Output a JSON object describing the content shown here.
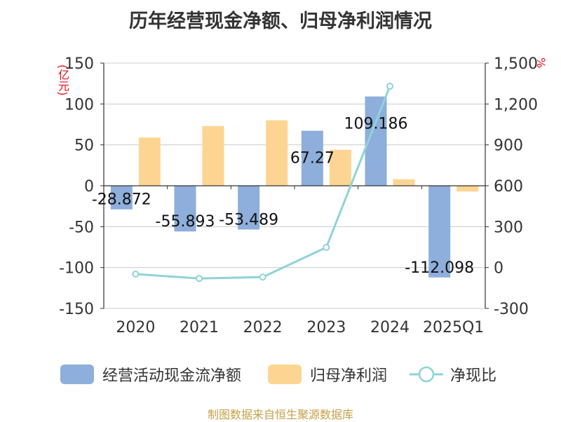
{
  "title": "历年经营现金净额、归母净利润情况",
  "left_unit": "(亿元)",
  "right_unit": "%",
  "source": "制图数据来自恒生聚源数据库",
  "colors": {
    "bar_cash": "#8eaedb",
    "bar_profit": "#fdd592",
    "line": "#8fd3d8",
    "axis_text": "#333333",
    "grid": "#cccccc",
    "unit": "#e8101b",
    "source": "#c6a04a"
  },
  "chart_data": {
    "type": "bar",
    "categories": [
      "2020",
      "2021",
      "2022",
      "2023",
      "2024",
      "2025Q1"
    ],
    "series": [
      {
        "name": "经营活动现金流净额",
        "type": "bar",
        "axis": "left",
        "values": [
          -28.872,
          -55.893,
          -53.489,
          67.27,
          109.186,
          -112.098
        ],
        "labels": [
          "-28.872",
          "-55.893",
          "-53.489",
          "67.27",
          "109.186",
          "-112.098"
        ]
      },
      {
        "name": "归母净利润",
        "type": "bar",
        "axis": "left",
        "values": [
          59,
          73,
          80,
          44,
          8,
          -7
        ]
      },
      {
        "name": "净现比",
        "type": "line",
        "axis": "right",
        "values": [
          -48,
          -80,
          -70,
          148,
          1330,
          null
        ]
      }
    ],
    "y_left": {
      "min": -150,
      "max": 150,
      "ticks": [
        "150",
        "100",
        "50",
        "0",
        "-50",
        "-100",
        "-150"
      ],
      "tick_values": [
        150,
        100,
        50,
        0,
        -50,
        -100,
        -150
      ]
    },
    "y_right": {
      "min": -300,
      "max": 1500,
      "ticks": [
        "1,500",
        "1,200",
        "900",
        "600",
        "300",
        "0",
        "-300"
      ],
      "tick_values": [
        1500,
        1200,
        900,
        600,
        300,
        0,
        -300
      ]
    },
    "legend": [
      "经营活动现金流净额",
      "归母净利润",
      "净现比"
    ],
    "legend_position": "bottom"
  }
}
